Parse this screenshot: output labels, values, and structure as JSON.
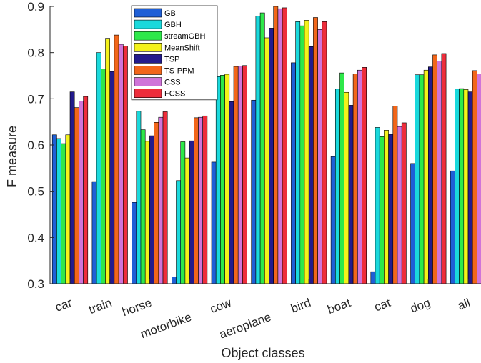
{
  "chart_data": {
    "type": "bar",
    "xlabel": "Object classes",
    "ylabel": "F measure",
    "ylim": [
      0.3,
      0.9
    ],
    "yticks": [
      0.3,
      0.4,
      0.5,
      0.6,
      0.7,
      0.8,
      0.9
    ],
    "ytick_labels": [
      "0.3",
      "0.4",
      "0.5",
      "0.6",
      "0.7",
      "0.8",
      "0.9"
    ],
    "grid": false,
    "legend_position": "top-left",
    "categories": [
      "car",
      "train",
      "horse",
      "motorbike",
      "cow",
      "aeroplane",
      "bird",
      "boat",
      "cat",
      "dog",
      "all"
    ],
    "series": [
      {
        "name": "GB",
        "color": "#1f5fd6",
        "values": [
          0.622,
          0.521,
          0.476,
          0.315,
          0.563,
          0.697,
          0.778,
          0.575,
          0.326,
          0.56,
          0.544
        ]
      },
      {
        "name": "GBH",
        "color": "#1ad9dc",
        "values": [
          0.614,
          0.8,
          0.673,
          0.523,
          0.748,
          0.879,
          0.867,
          0.721,
          0.638,
          0.752,
          0.721
        ]
      },
      {
        "name": "streamGBH",
        "color": "#2ee84a",
        "values": [
          0.603,
          0.765,
          0.633,
          0.607,
          0.751,
          0.886,
          0.858,
          0.756,
          0.618,
          0.752,
          0.722
        ]
      },
      {
        "name": "MeanShift",
        "color": "#f4f21a",
        "values": [
          0.622,
          0.831,
          0.608,
          0.572,
          0.753,
          0.832,
          0.87,
          0.714,
          0.632,
          0.762,
          0.72
        ]
      },
      {
        "name": "TSP",
        "color": "#231b8c",
        "values": [
          0.715,
          0.759,
          0.62,
          0.609,
          0.694,
          0.853,
          0.813,
          0.686,
          0.623,
          0.769,
          0.715
        ]
      },
      {
        "name": "TS-PPM",
        "color": "#f2661a",
        "values": [
          0.681,
          0.838,
          0.649,
          0.659,
          0.77,
          0.9,
          0.876,
          0.754,
          0.684,
          0.795,
          0.761
        ]
      },
      {
        "name": "CSS",
        "color": "#d074d9",
        "values": [
          0.695,
          0.818,
          0.66,
          0.66,
          0.771,
          0.895,
          0.85,
          0.762,
          0.64,
          0.782,
          0.754
        ]
      },
      {
        "name": "FCSS",
        "color": "#ee2d3b",
        "values": [
          0.705,
          0.814,
          0.672,
          0.663,
          0.772,
          0.897,
          0.867,
          0.768,
          0.648,
          0.798,
          0.761
        ]
      }
    ]
  }
}
